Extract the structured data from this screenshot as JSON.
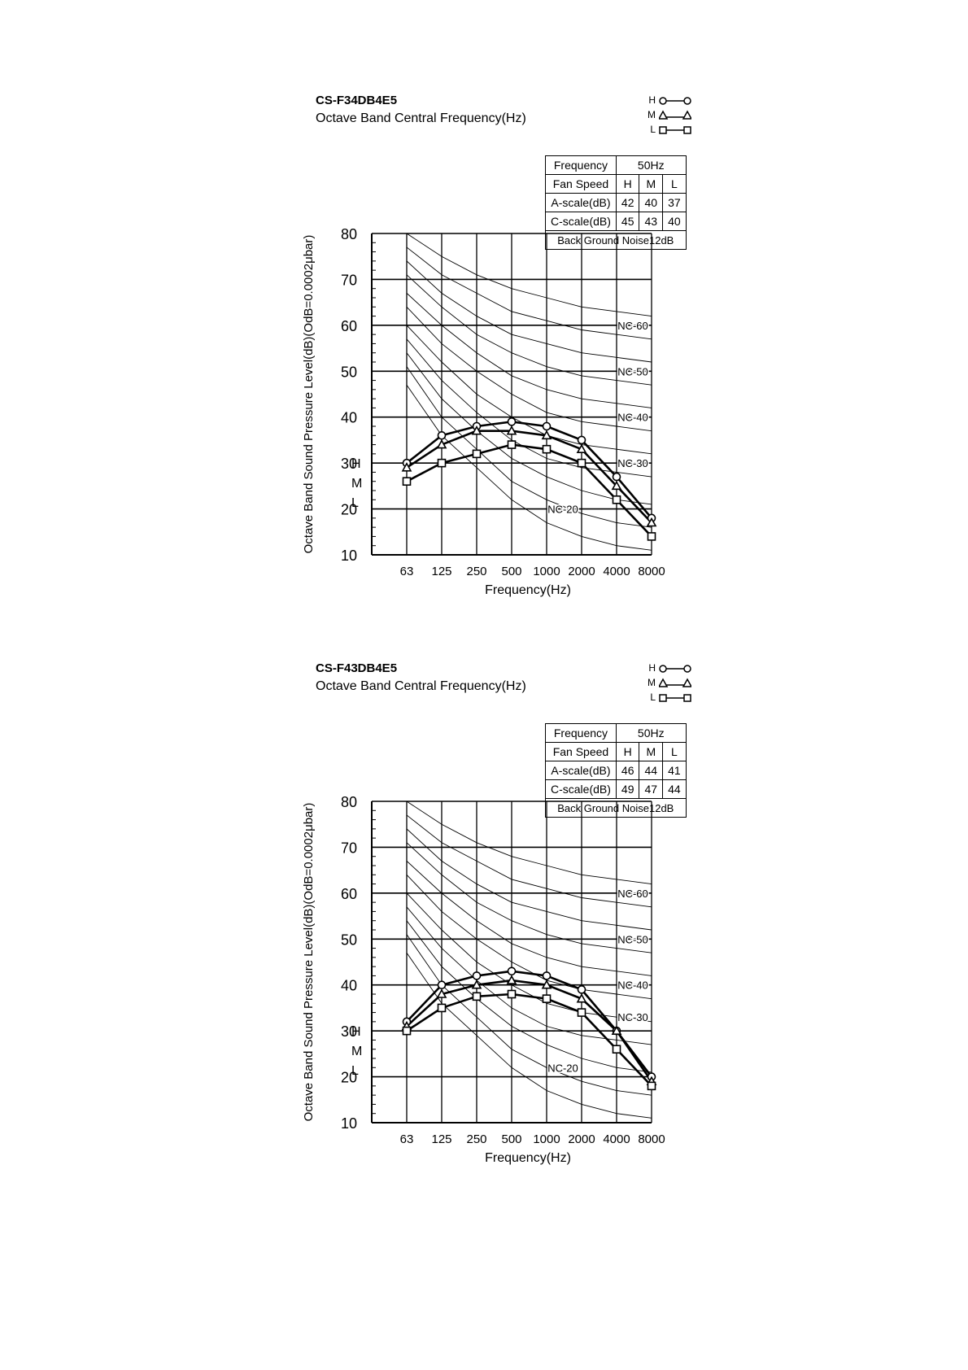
{
  "chart_data": [
    {
      "type": "line",
      "title": "CS-F34DB4E5",
      "subtitle": "Octave Band Central Frequency(Hz)",
      "xlabel": "Frequency(Hz)",
      "ylabel": "Octave Band Sound Pressure Level(dB)(OdB=0.0002μbar)",
      "categories": [
        "63",
        "125",
        "250",
        "500",
        "1000",
        "2000",
        "4000",
        "8000"
      ],
      "ylim": [
        10,
        80
      ],
      "yticks": [
        "80",
        "70",
        "60",
        "50",
        "40",
        "30",
        "20",
        "10"
      ],
      "series": [
        {
          "name": "H",
          "marker": "circle",
          "values": [
            30,
            36,
            38,
            39,
            38,
            35,
            27,
            18
          ]
        },
        {
          "name": "M",
          "marker": "triangle",
          "values": [
            29,
            34,
            37,
            37,
            36,
            33,
            25,
            17
          ]
        },
        {
          "name": "L",
          "marker": "square",
          "values": [
            26,
            30,
            32,
            34,
            33,
            30,
            22,
            14
          ]
        }
      ],
      "series_labels": [
        "H",
        "M",
        "L"
      ],
      "nc_labels": [
        {
          "text": "NC-60",
          "x": 4000,
          "y": 60
        },
        {
          "text": "NC-50",
          "x": 4000,
          "y": 50
        },
        {
          "text": "NC-40",
          "x": 4000,
          "y": 40
        },
        {
          "text": "NC-30",
          "x": 4000,
          "y": 30
        },
        {
          "text": "NC-20",
          "x": 1000,
          "y": 20
        }
      ],
      "legend": {
        "items": [
          "H",
          "M",
          "L"
        ],
        "position": "top-right"
      },
      "table": {
        "frequency_label": "Frequency",
        "frequency_value": "50Hz",
        "fan_speed_label": "Fan Speed",
        "speeds": [
          "H",
          "M",
          "L"
        ],
        "a_scale_label": "A-scale(dB)",
        "a_scale": [
          "42",
          "40",
          "37"
        ],
        "c_scale_label": "C-scale(dB)",
        "c_scale": [
          "45",
          "43",
          "40"
        ],
        "background_noise": "Back Ground Noise12dB"
      }
    },
    {
      "type": "line",
      "title": "CS-F43DB4E5",
      "subtitle": "Octave Band Central Frequency(Hz)",
      "xlabel": "Frequency(Hz)",
      "ylabel": "Octave Band Sound Pressure Level(dB)(OdB=0.0002μbar)",
      "categories": [
        "63",
        "125",
        "250",
        "500",
        "1000",
        "2000",
        "4000",
        "8000"
      ],
      "ylim": [
        10,
        80
      ],
      "yticks": [
        "80",
        "70",
        "60",
        "50",
        "40",
        "30",
        "20",
        "10"
      ],
      "series": [
        {
          "name": "H",
          "marker": "circle",
          "values": [
            32,
            40,
            42,
            43,
            42,
            39,
            30,
            20
          ]
        },
        {
          "name": "M",
          "marker": "triangle",
          "values": [
            31,
            38,
            40,
            41,
            40,
            37,
            30,
            19
          ]
        },
        {
          "name": "L",
          "marker": "square",
          "values": [
            30,
            35,
            37.5,
            38,
            37,
            34,
            26,
            18
          ]
        }
      ],
      "series_labels": [
        "H",
        "M",
        "L"
      ],
      "nc_labels": [
        {
          "text": "NC-60",
          "x": 4000,
          "y": 60
        },
        {
          "text": "NC-50",
          "x": 4000,
          "y": 50
        },
        {
          "text": "NC-40",
          "x": 4000,
          "y": 40
        },
        {
          "text": "NC-30",
          "x": 4000,
          "y": 33
        },
        {
          "text": "NC-20",
          "x": 1000,
          "y": 22
        }
      ],
      "legend": {
        "items": [
          "H",
          "M",
          "L"
        ],
        "position": "top-right"
      },
      "table": {
        "frequency_label": "Frequency",
        "frequency_value": "50Hz",
        "fan_speed_label": "Fan Speed",
        "speeds": [
          "H",
          "M",
          "L"
        ],
        "a_scale_label": "A-scale(dB)",
        "a_scale": [
          "46",
          "44",
          "41"
        ],
        "c_scale_label": "C-scale(dB)",
        "c_scale": [
          "49",
          "47",
          "44"
        ],
        "background_noise": "Back Ground Noise12dB"
      }
    }
  ]
}
